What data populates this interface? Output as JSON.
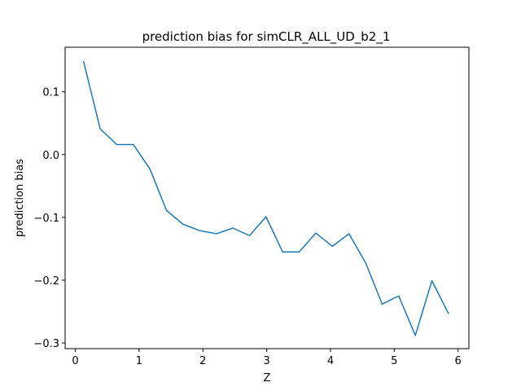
{
  "chart_data": {
    "type": "line",
    "title": "prediction bias for simCLR_ALL_UD_b2_1",
    "xlabel": "Z",
    "ylabel": "prediction bias",
    "xlim": [
      -0.16,
      6.17
    ],
    "ylim": [
      -0.309,
      0.171
    ],
    "xticks": [
      0,
      1,
      2,
      3,
      4,
      5,
      6
    ],
    "xtick_labels": [
      "0",
      "1",
      "2",
      "3",
      "4",
      "5",
      "6"
    ],
    "yticks": [
      0.1,
      0.0,
      -0.1,
      -0.2,
      -0.3
    ],
    "ytick_labels": [
      "0.1",
      "0.0",
      "−0.1",
      "−0.2",
      "−0.3"
    ],
    "grid": false,
    "legend": "none",
    "series": [
      {
        "color": "#1f77b4",
        "x": [
          0.13,
          0.39,
          0.65,
          0.91,
          1.17,
          1.43,
          1.69,
          1.95,
          2.21,
          2.47,
          2.73,
          2.99,
          3.25,
          3.51,
          3.77,
          4.03,
          4.29,
          4.55,
          4.81,
          5.07,
          5.33,
          5.59,
          5.85
        ],
        "y": [
          0.148,
          0.041,
          0.016,
          0.016,
          -0.023,
          -0.089,
          -0.111,
          -0.121,
          -0.126,
          -0.117,
          -0.129,
          -0.099,
          -0.155,
          -0.155,
          -0.125,
          -0.146,
          -0.126,
          -0.172,
          -0.238,
          -0.225,
          -0.288,
          -0.201,
          -0.253
        ]
      }
    ]
  }
}
